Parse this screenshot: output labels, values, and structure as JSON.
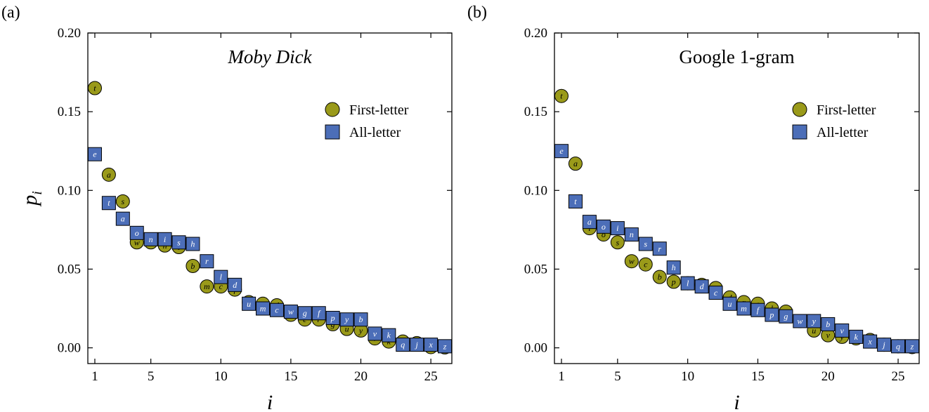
{
  "chart_data": [
    {
      "type": "scatter",
      "panel_label": "(a)",
      "title": "Moby Dick",
      "title_italic": true,
      "xlabel": "i",
      "ylabel": "p",
      "ylabel_subscript": "i",
      "xlim": [
        0.5,
        26.5
      ],
      "ylim": [
        -0.01,
        0.2
      ],
      "xticks": [
        1,
        5,
        10,
        15,
        20,
        25
      ],
      "yticks": [
        0.0,
        0.05,
        0.1,
        0.15,
        0.2
      ],
      "ytick_labels": [
        "0.00",
        "0.05",
        "0.10",
        "0.15",
        "0.20"
      ],
      "grid": false,
      "legend_position": "upper-right",
      "series": [
        {
          "name": "First-letter",
          "marker": "circle",
          "color": "#9a9a1a",
          "letter_color": "#000000",
          "points": [
            {
              "letter": "t",
              "x": 1,
              "y": 0.165
            },
            {
              "letter": "a",
              "x": 2,
              "y": 0.11
            },
            {
              "letter": "s",
              "x": 3,
              "y": 0.093
            },
            {
              "letter": "w",
              "x": 4,
              "y": 0.067
            },
            {
              "letter": "o",
              "x": 5,
              "y": 0.067
            },
            {
              "letter": "h",
              "x": 6,
              "y": 0.065
            },
            {
              "letter": "i",
              "x": 7,
              "y": 0.064
            },
            {
              "letter": "b",
              "x": 8,
              "y": 0.052
            },
            {
              "letter": "m",
              "x": 9,
              "y": 0.039
            },
            {
              "letter": "c",
              "x": 10,
              "y": 0.039
            },
            {
              "letter": "f",
              "x": 11,
              "y": 0.037
            },
            {
              "letter": "l",
              "x": 12,
              "y": 0.029
            },
            {
              "letter": "p",
              "x": 13,
              "y": 0.028
            },
            {
              "letter": "d",
              "x": 14,
              "y": 0.027
            },
            {
              "letter": "n",
              "x": 15,
              "y": 0.021
            },
            {
              "letter": "e",
              "x": 16,
              "y": 0.018
            },
            {
              "letter": "r",
              "x": 17,
              "y": 0.018
            },
            {
              "letter": "g",
              "x": 18,
              "y": 0.015
            },
            {
              "letter": "u",
              "x": 19,
              "y": 0.012
            },
            {
              "letter": "y",
              "x": 20,
              "y": 0.011
            },
            {
              "letter": "v",
              "x": 21,
              "y": 0.006
            },
            {
              "letter": "k",
              "x": 22,
              "y": 0.004
            },
            {
              "letter": "q",
              "x": 23,
              "y": 0.004
            },
            {
              "letter": "j",
              "x": 24,
              "y": 0.003
            },
            {
              "letter": "z",
              "x": 25,
              "y": 0.0005
            },
            {
              "letter": "x",
              "x": 26,
              "y": 0.0003
            }
          ]
        },
        {
          "name": "All-letter",
          "marker": "square",
          "color": "#4c6eb8",
          "letter_color": "#ffffff",
          "points": [
            {
              "letter": "e",
              "x": 1,
              "y": 0.123
            },
            {
              "letter": "t",
              "x": 2,
              "y": 0.092
            },
            {
              "letter": "a",
              "x": 3,
              "y": 0.082
            },
            {
              "letter": "o",
              "x": 4,
              "y": 0.073
            },
            {
              "letter": "n",
              "x": 5,
              "y": 0.069
            },
            {
              "letter": "i",
              "x": 6,
              "y": 0.069
            },
            {
              "letter": "s",
              "x": 7,
              "y": 0.067
            },
            {
              "letter": "h",
              "x": 8,
              "y": 0.066
            },
            {
              "letter": "r",
              "x": 9,
              "y": 0.055
            },
            {
              "letter": "l",
              "x": 10,
              "y": 0.045
            },
            {
              "letter": "d",
              "x": 11,
              "y": 0.04
            },
            {
              "letter": "u",
              "x": 12,
              "y": 0.028
            },
            {
              "letter": "m",
              "x": 13,
              "y": 0.025
            },
            {
              "letter": "c",
              "x": 14,
              "y": 0.024
            },
            {
              "letter": "w",
              "x": 15,
              "y": 0.023
            },
            {
              "letter": "g",
              "x": 16,
              "y": 0.022
            },
            {
              "letter": "f",
              "x": 17,
              "y": 0.022
            },
            {
              "letter": "p",
              "x": 18,
              "y": 0.019
            },
            {
              "letter": "y",
              "x": 19,
              "y": 0.018
            },
            {
              "letter": "b",
              "x": 20,
              "y": 0.018
            },
            {
              "letter": "v",
              "x": 21,
              "y": 0.009
            },
            {
              "letter": "k",
              "x": 22,
              "y": 0.008
            },
            {
              "letter": "q",
              "x": 23,
              "y": 0.002
            },
            {
              "letter": "j",
              "x": 24,
              "y": 0.002
            },
            {
              "letter": "x",
              "x": 25,
              "y": 0.002
            },
            {
              "letter": "z",
              "x": 26,
              "y": 0.001
            }
          ]
        }
      ]
    },
    {
      "type": "scatter",
      "panel_label": "(b)",
      "title": "Google 1-gram",
      "title_italic": false,
      "xlabel": "i",
      "ylabel": "",
      "ylabel_subscript": "",
      "xlim": [
        0.5,
        26.5
      ],
      "ylim": [
        -0.01,
        0.2
      ],
      "xticks": [
        1,
        5,
        10,
        15,
        20,
        25
      ],
      "yticks": [
        0.0,
        0.05,
        0.1,
        0.15,
        0.2
      ],
      "ytick_labels": [
        "0.00",
        "0.05",
        "0.10",
        "0.15",
        "0.20"
      ],
      "grid": false,
      "legend_position": "upper-right",
      "series": [
        {
          "name": "First-letter",
          "marker": "circle",
          "color": "#9a9a1a",
          "letter_color": "#000000",
          "points": [
            {
              "letter": "t",
              "x": 1,
              "y": 0.16
            },
            {
              "letter": "a",
              "x": 2,
              "y": 0.117
            },
            {
              "letter": "i",
              "x": 3,
              "y": 0.076
            },
            {
              "letter": "o",
              "x": 4,
              "y": 0.072
            },
            {
              "letter": "s",
              "x": 5,
              "y": 0.067
            },
            {
              "letter": "w",
              "x": 6,
              "y": 0.055
            },
            {
              "letter": "c",
              "x": 7,
              "y": 0.053
            },
            {
              "letter": "b",
              "x": 8,
              "y": 0.045
            },
            {
              "letter": "p",
              "x": 9,
              "y": 0.042
            },
            {
              "letter": "h",
              "x": 10,
              "y": 0.041
            },
            {
              "letter": "f",
              "x": 11,
              "y": 0.04
            },
            {
              "letter": "m",
              "x": 12,
              "y": 0.038
            },
            {
              "letter": "d",
              "x": 13,
              "y": 0.032
            },
            {
              "letter": "r",
              "x": 14,
              "y": 0.029
            },
            {
              "letter": "e",
              "x": 15,
              "y": 0.028
            },
            {
              "letter": "l",
              "x": 16,
              "y": 0.025
            },
            {
              "letter": "n",
              "x": 17,
              "y": 0.023
            },
            {
              "letter": "g",
              "x": 18,
              "y": 0.017
            },
            {
              "letter": "u",
              "x": 19,
              "y": 0.011
            },
            {
              "letter": "v",
              "x": 20,
              "y": 0.008
            },
            {
              "letter": "y",
              "x": 21,
              "y": 0.007
            },
            {
              "letter": "j",
              "x": 22,
              "y": 0.006
            },
            {
              "letter": "k",
              "x": 23,
              "y": 0.005
            },
            {
              "letter": "q",
              "x": 24,
              "y": 0.002
            },
            {
              "letter": "z",
              "x": 25,
              "y": 0.001
            },
            {
              "letter": "x",
              "x": 26,
              "y": 0.0005
            }
          ]
        },
        {
          "name": "All-letter",
          "marker": "square",
          "color": "#4c6eb8",
          "letter_color": "#ffffff",
          "points": [
            {
              "letter": "e",
              "x": 1,
              "y": 0.125
            },
            {
              "letter": "t",
              "x": 2,
              "y": 0.093
            },
            {
              "letter": "a",
              "x": 3,
              "y": 0.08
            },
            {
              "letter": "o",
              "x": 4,
              "y": 0.077
            },
            {
              "letter": "i",
              "x": 5,
              "y": 0.076
            },
            {
              "letter": "n",
              "x": 6,
              "y": 0.072
            },
            {
              "letter": "s",
              "x": 7,
              "y": 0.066
            },
            {
              "letter": "r",
              "x": 8,
              "y": 0.063
            },
            {
              "letter": "h",
              "x": 9,
              "y": 0.051
            },
            {
              "letter": "l",
              "x": 10,
              "y": 0.041
            },
            {
              "letter": "d",
              "x": 11,
              "y": 0.039
            },
            {
              "letter": "c",
              "x": 12,
              "y": 0.035
            },
            {
              "letter": "u",
              "x": 13,
              "y": 0.028
            },
            {
              "letter": "m",
              "x": 14,
              "y": 0.025
            },
            {
              "letter": "f",
              "x": 15,
              "y": 0.024
            },
            {
              "letter": "p",
              "x": 16,
              "y": 0.021
            },
            {
              "letter": "g",
              "x": 17,
              "y": 0.02
            },
            {
              "letter": "w",
              "x": 18,
              "y": 0.017
            },
            {
              "letter": "y",
              "x": 19,
              "y": 0.017
            },
            {
              "letter": "b",
              "x": 20,
              "y": 0.015
            },
            {
              "letter": "v",
              "x": 21,
              "y": 0.011
            },
            {
              "letter": "k",
              "x": 22,
              "y": 0.007
            },
            {
              "letter": "x",
              "x": 23,
              "y": 0.004
            },
            {
              "letter": "j",
              "x": 24,
              "y": 0.002
            },
            {
              "letter": "q",
              "x": 25,
              "y": 0.001
            },
            {
              "letter": "z",
              "x": 26,
              "y": 0.001
            }
          ]
        }
      ]
    }
  ]
}
